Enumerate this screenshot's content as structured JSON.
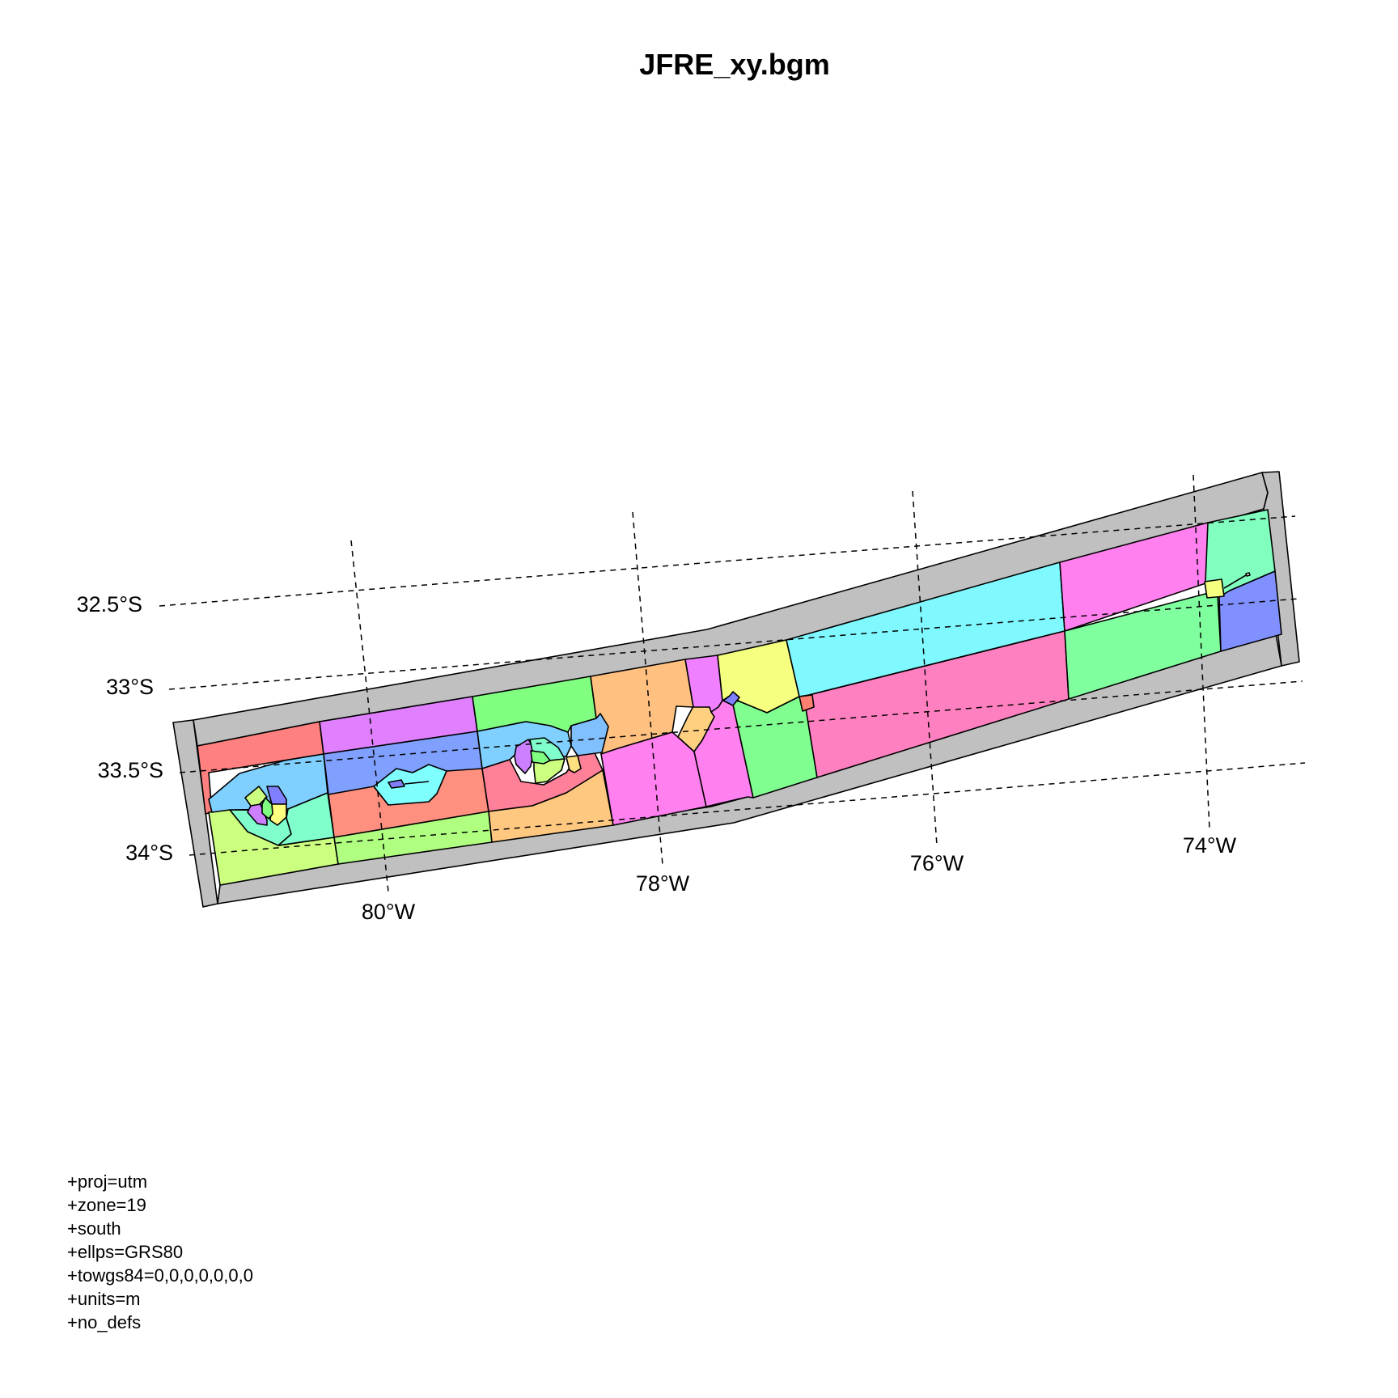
{
  "title": "JFRE_xy.bgm",
  "colors": {
    "outline": "#000000",
    "boundary_fill": "#c0c0c0",
    "graticule": "#000000"
  },
  "graticule": {
    "latitude_labels": [
      "32.5°S",
      "33°S",
      "33.5°S",
      "34°S"
    ],
    "longitude_labels": [
      "80°W",
      "78°W",
      "76°W",
      "74°W"
    ]
  },
  "projection": {
    "lines": [
      "+proj=utm",
      "+zone=19",
      "+south",
      "+ellps=GRS80",
      "+towgs84=0,0,0,0,0,0,0",
      "+units=m",
      "+no_defs"
    ]
  }
}
